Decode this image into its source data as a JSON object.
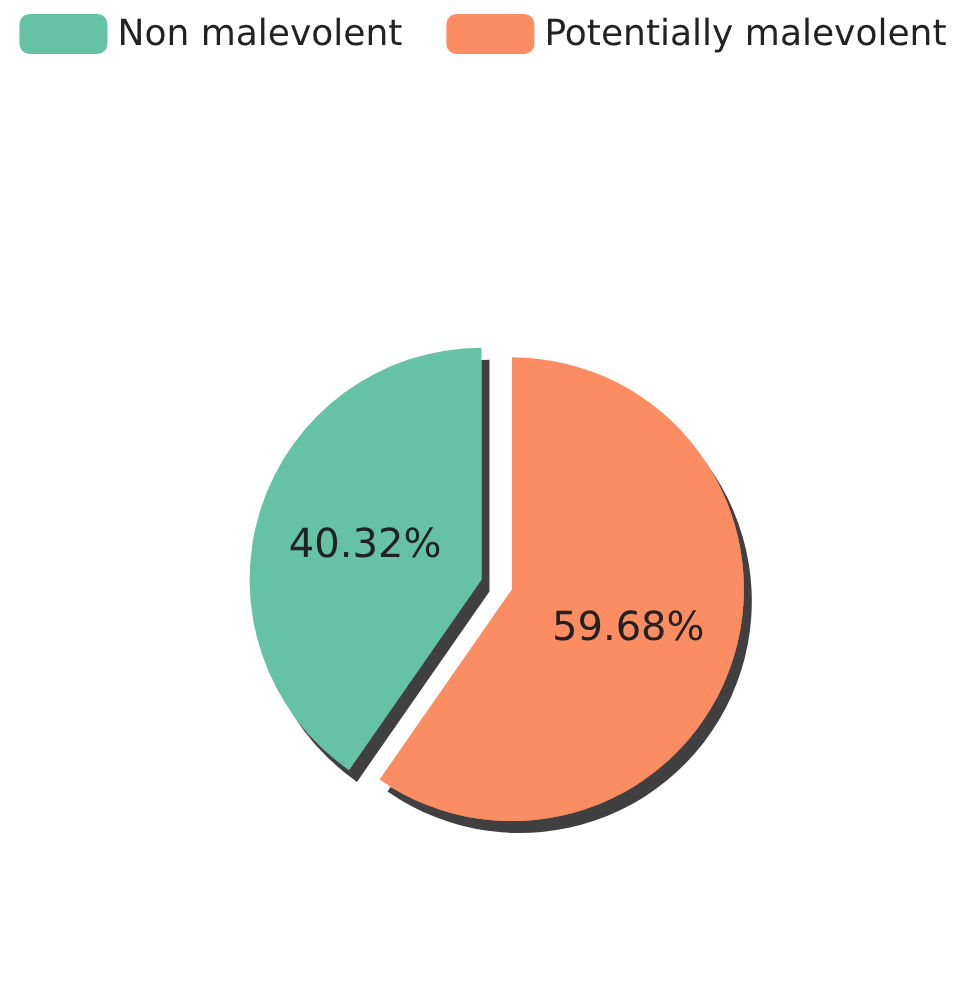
{
  "chart_data": {
    "type": "pie",
    "categories": [
      "Non malevolent",
      "Potentially malevolent"
    ],
    "values": [
      40.32,
      59.68
    ],
    "colors": [
      "#66c2a5",
      "#fc8d62"
    ],
    "value_labels": [
      "40.32%",
      "59.68%"
    ],
    "legend": "top"
  }
}
